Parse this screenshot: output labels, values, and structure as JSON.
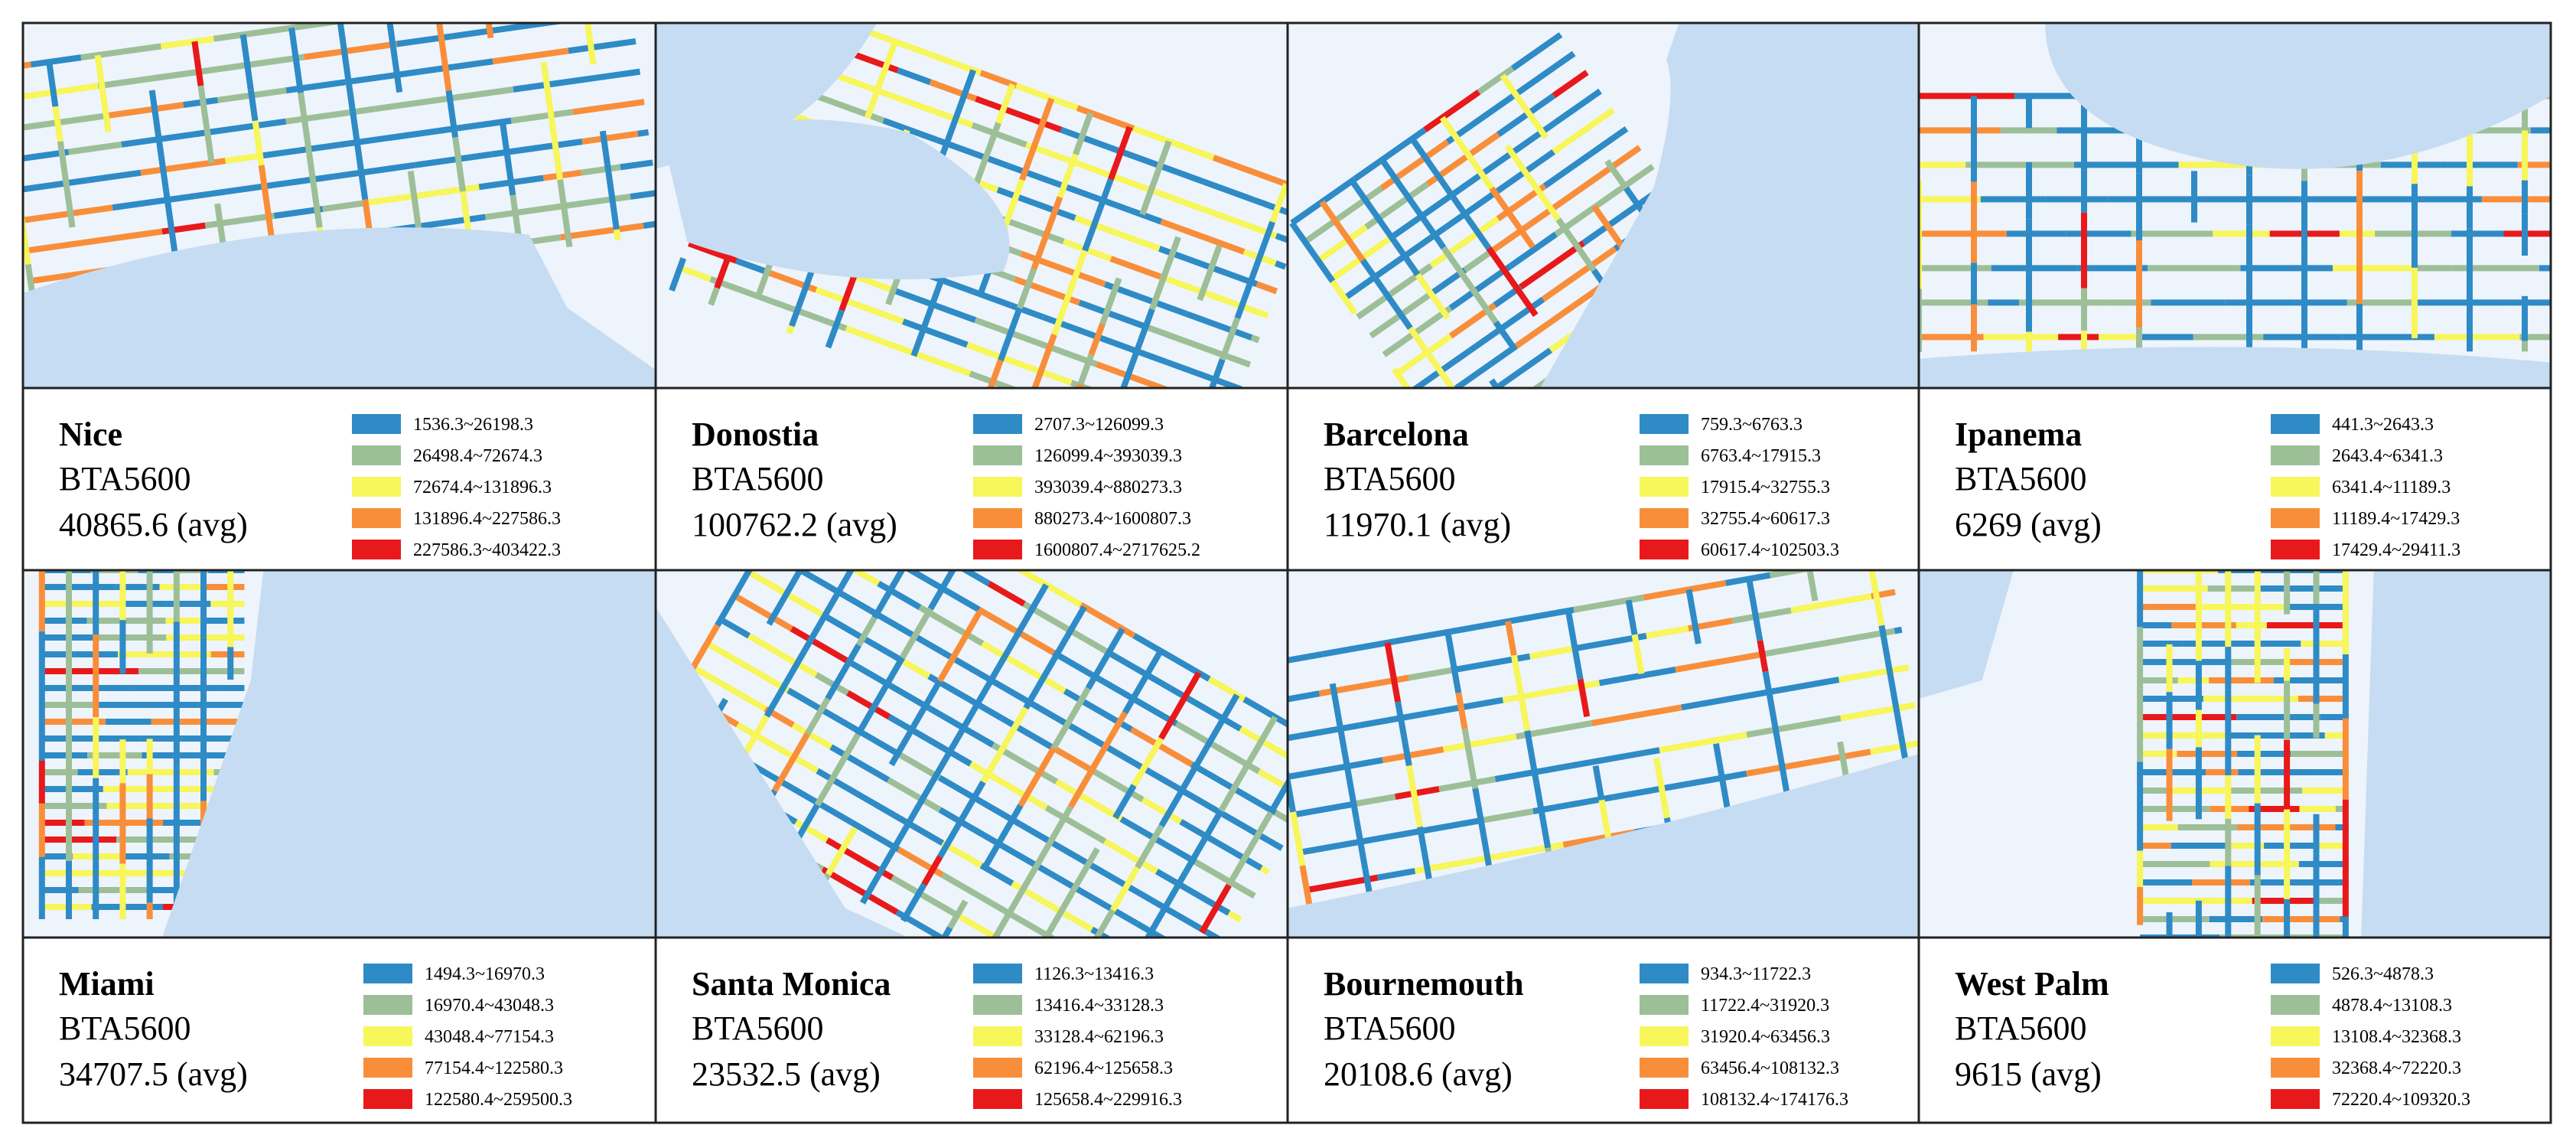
{
  "legend_colors": [
    "#2e8bc6",
    "#9dbf98",
    "#f7f65a",
    "#f98e3a",
    "#e8191b"
  ],
  "panels": [
    {
      "city": "Nice",
      "metric": "BTA5600",
      "avg": "40865.6 (avg)",
      "legend": [
        "1536.3~26198.3",
        "26498.4~72674.3",
        "72674.4~131896.3",
        "131896.4~227586.3",
        "227586.3~403422.3"
      ]
    },
    {
      "city": "Donostia",
      "metric": "BTA5600",
      "avg": "100762.2 (avg)",
      "legend": [
        "2707.3~126099.3",
        "126099.4~393039.3",
        "393039.4~880273.3",
        "880273.4~1600807.3",
        "1600807.4~2717625.2"
      ]
    },
    {
      "city": "Barcelona",
      "metric": "BTA5600",
      "avg": "11970.1 (avg)",
      "legend": [
        "759.3~6763.3",
        "6763.4~17915.3",
        "17915.4~32755.3",
        "32755.4~60617.3",
        "60617.4~102503.3"
      ]
    },
    {
      "city": "Ipanema",
      "metric": "BTA5600",
      "avg": "6269 (avg)",
      "legend": [
        "441.3~2643.3",
        "2643.4~6341.3",
        "6341.4~11189.3",
        "11189.4~17429.3",
        "17429.4~29411.3"
      ]
    },
    {
      "city": "Miami",
      "metric": "BTA5600",
      "avg": "34707.5 (avg)",
      "legend": [
        "1494.3~16970.3",
        "16970.4~43048.3",
        "43048.4~77154.3",
        "77154.4~122580.3",
        "122580.4~259500.3"
      ]
    },
    {
      "city": "Santa Monica",
      "metric": "BTA5600",
      "avg": "23532.5 (avg)",
      "legend": [
        "1126.3~13416.3",
        "13416.4~33128.3",
        "33128.4~62196.3",
        "62196.4~125658.3",
        "125658.4~229916.3"
      ]
    },
    {
      "city": "Bournemouth",
      "metric": "BTA5600",
      "avg": "20108.6 (avg)",
      "legend": [
        "934.3~11722.3",
        "11722.4~31920.3",
        "31920.4~63456.3",
        "63456.4~108132.3",
        "108132.4~174176.3"
      ]
    },
    {
      "city": "West Palm",
      "metric": "BTA5600",
      "avg": "9615 (avg)",
      "legend": [
        "526.3~4878.3",
        "4878.4~13108.3",
        "13108.4~32368.3",
        "32368.4~72220.3",
        "72220.4~109320.3"
      ]
    }
  ]
}
